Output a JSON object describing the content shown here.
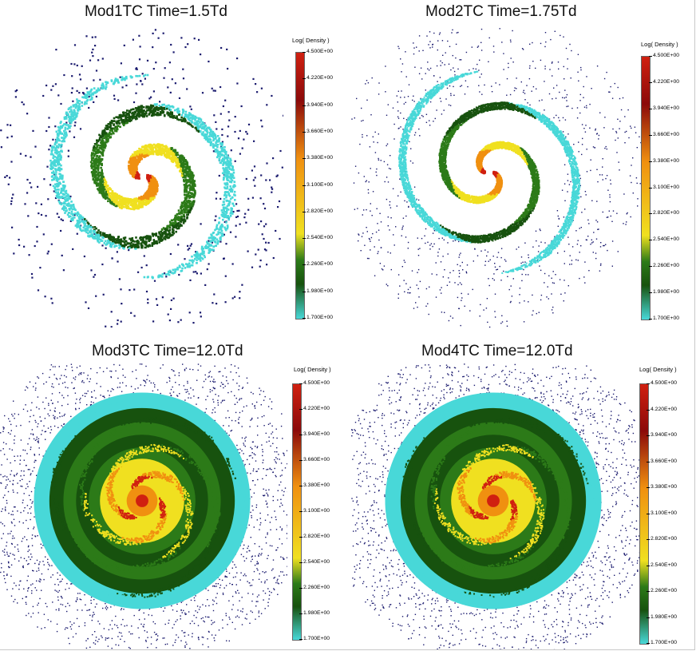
{
  "figure": {
    "colors": {
      "background": "#ffffff",
      "low_dot": "#1a1a6e",
      "cyan": "#48d8d8",
      "dark_green": "#17520e",
      "green": "#2c7a18",
      "yellow": "#f0e020",
      "orange": "#f09010",
      "red": "#d02010",
      "dark_red": "#8b0a0a"
    },
    "panels": [
      {
        "id": "mod1",
        "title": "Mod1TC Time=1.5Td",
        "legend_title": "Log(  Density  )",
        "ticks": [
          "4.500E+00",
          "4.220E+00",
          "3.940E+00",
          "3.660E+00",
          "3.380E+00",
          "3.100E+00",
          "2.820E+00",
          "2.540E+00",
          "2.260E+00",
          "1.980E+00",
          "1.700E+00"
        ]
      },
      {
        "id": "mod2",
        "title": "Mod2TC Time=1.75Td",
        "legend_title": "Log(  Density  )",
        "ticks": [
          "4.500E+00",
          "4.220E+00",
          "3.940E+00",
          "3.660E+00",
          "3.380E+00",
          "3.100E+00",
          "2.820E+00",
          "2.540E+00",
          "2.260E+00",
          "1.980E+00",
          "1.700E+00"
        ]
      },
      {
        "id": "mod3",
        "title": "Mod3TC Time=12.0Td",
        "legend_title": "Log(  Density  )",
        "ticks": [
          "4.500E+00",
          "4.220E+00",
          "3.940E+00",
          "3.660E+00",
          "3.380E+00",
          "3.100E+00",
          "2.820E+00",
          "2.540E+00",
          "2.260E+00",
          "1.980E+00",
          "1.700E+00"
        ]
      },
      {
        "id": "mod4",
        "title": "Mod4TC Time=12.0Td",
        "legend_title": "Log(  Density  )",
        "ticks": [
          "4.500E+00",
          "4.220E+00",
          "3.940E+00",
          "3.660E+00",
          "3.380E+00",
          "3.100E+00",
          "2.820E+00",
          "2.540E+00",
          "2.260E+00",
          "1.980E+00",
          "1.700E+00"
        ]
      }
    ]
  }
}
